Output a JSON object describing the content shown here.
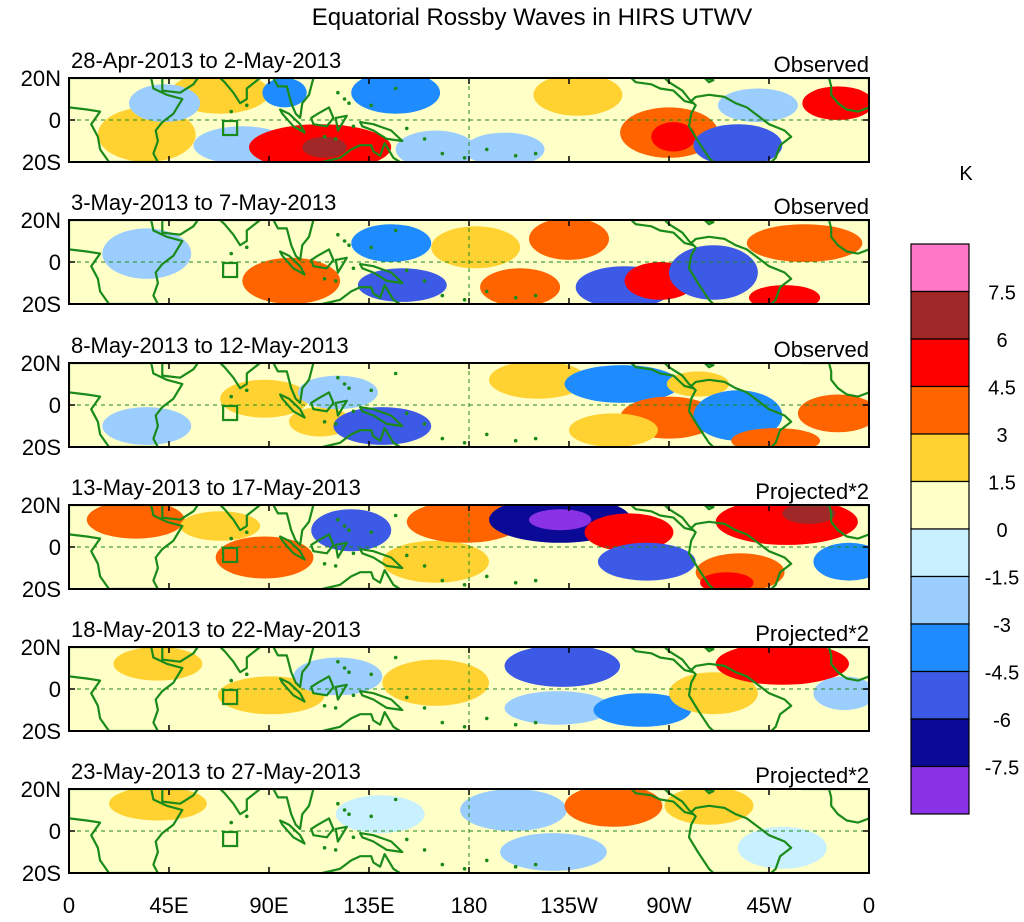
{
  "chart_data": {
    "type": "heatmap",
    "title": "Equatorial Rossby Waves in HIRS UTWV",
    "units_label": "K",
    "x_ticks": [
      "0",
      "45E",
      "90E",
      "135E",
      "180",
      "135W",
      "90W",
      "45W",
      "0"
    ],
    "y_ticks": [
      "20N",
      "0",
      "20S"
    ],
    "colorbar": {
      "levels": [
        "7.5",
        "6",
        "4.5",
        "3",
        "1.5",
        "0",
        "-1.5",
        "-3",
        "-4.5",
        "-6",
        "-7.5"
      ],
      "colors": [
        "#ff78c8",
        "#a02828",
        "#ff0000",
        "#ff6400",
        "#ffd232",
        "#ffffc8",
        "#c8f0ff",
        "#9bcdff",
        "#1e8cff",
        "#3c5ae6",
        "#0a0a96",
        "#8c32e6"
      ]
    },
    "colors": {
      "land": "#1a8a1a",
      "frame": "#000000",
      "guide": "#1a8a1a"
    },
    "panels": [
      {
        "period": "28-Apr-2013 to 2-May-2013",
        "kind": "Observed",
        "blobs": [
          {
            "lon": 35,
            "lat": -7,
            "w": 22,
            "h": 13,
            "c": "#ffd232"
          },
          {
            "lon": 68,
            "lat": 13,
            "w": 22,
            "h": 10,
            "c": "#ffd232"
          },
          {
            "lon": 43,
            "lat": 8,
            "w": 16,
            "h": 9,
            "c": "#9bcdff"
          },
          {
            "lon": 78,
            "lat": -12,
            "w": 22,
            "h": 9,
            "c": "#9bcdff"
          },
          {
            "lon": 113,
            "lat": -13,
            "w": 32,
            "h": 11,
            "c": "#ff0000"
          },
          {
            "lon": 115,
            "lat": -13,
            "w": 10,
            "h": 5,
            "c": "#a02828"
          },
          {
            "lon": 97,
            "lat": 13,
            "w": 10,
            "h": 7,
            "c": "#1e8cff"
          },
          {
            "lon": 147,
            "lat": 13,
            "w": 20,
            "h": 10,
            "c": "#1e8cff"
          },
          {
            "lon": 165,
            "lat": -14,
            "w": 18,
            "h": 9,
            "c": "#9bcdff"
          },
          {
            "lon": 196,
            "lat": -14,
            "w": 18,
            "h": 8,
            "c": "#9bcdff"
          },
          {
            "lon": 229,
            "lat": 12,
            "w": 20,
            "h": 10,
            "c": "#ffd232"
          },
          {
            "lon": 270,
            "lat": -6,
            "w": 22,
            "h": 12,
            "c": "#ff6400"
          },
          {
            "lon": 272,
            "lat": -8,
            "w": 10,
            "h": 7,
            "c": "#ff0000"
          },
          {
            "lon": 301,
            "lat": -12,
            "w": 20,
            "h": 10,
            "c": "#3c5ae6"
          },
          {
            "lon": 310,
            "lat": 7,
            "w": 18,
            "h": 8,
            "c": "#9bcdff"
          },
          {
            "lon": 346,
            "lat": 8,
            "w": 16,
            "h": 8,
            "c": "#ff0000"
          }
        ]
      },
      {
        "period": "3-May-2013 to 7-May-2013",
        "kind": "Observed",
        "blobs": [
          {
            "lon": 35,
            "lat": 4,
            "w": 20,
            "h": 12,
            "c": "#9bcdff"
          },
          {
            "lon": 100,
            "lat": -9,
            "w": 22,
            "h": 11,
            "c": "#ff6400"
          },
          {
            "lon": 145,
            "lat": 9,
            "w": 18,
            "h": 9,
            "c": "#1e8cff"
          },
          {
            "lon": 150,
            "lat": -11,
            "w": 20,
            "h": 8,
            "c": "#3c5ae6"
          },
          {
            "lon": 183,
            "lat": 7,
            "w": 20,
            "h": 10,
            "c": "#ffd232"
          },
          {
            "lon": 203,
            "lat": -12,
            "w": 18,
            "h": 9,
            "c": "#ff6400"
          },
          {
            "lon": 225,
            "lat": 11,
            "w": 18,
            "h": 10,
            "c": "#ff6400"
          },
          {
            "lon": 250,
            "lat": -12,
            "w": 22,
            "h": 10,
            "c": "#3c5ae6"
          },
          {
            "lon": 266,
            "lat": -9,
            "w": 16,
            "h": 9,
            "c": "#ff0000"
          },
          {
            "lon": 290,
            "lat": -5,
            "w": 20,
            "h": 13,
            "c": "#3c5ae6"
          },
          {
            "lon": 331,
            "lat": 9,
            "w": 26,
            "h": 9,
            "c": "#ff6400"
          },
          {
            "lon": 322,
            "lat": -17,
            "w": 16,
            "h": 6,
            "c": "#ff0000"
          }
        ]
      },
      {
        "period": "8-May-2013 to 12-May-2013",
        "kind": "Observed",
        "blobs": [
          {
            "lon": 35,
            "lat": -10,
            "w": 20,
            "h": 9,
            "c": "#9bcdff"
          },
          {
            "lon": 88,
            "lat": 3,
            "w": 20,
            "h": 9,
            "c": "#ffd232"
          },
          {
            "lon": 113,
            "lat": -8,
            "w": 14,
            "h": 7,
            "c": "#ffd232"
          },
          {
            "lon": 121,
            "lat": 6,
            "w": 18,
            "h": 8,
            "c": "#9bcdff"
          },
          {
            "lon": 141,
            "lat": -10,
            "w": 22,
            "h": 9,
            "c": "#3c5ae6"
          },
          {
            "lon": 211,
            "lat": 12,
            "w": 22,
            "h": 9,
            "c": "#ffd232"
          },
          {
            "lon": 249,
            "lat": 10,
            "w": 26,
            "h": 9,
            "c": "#1e8cff"
          },
          {
            "lon": 270,
            "lat": -6,
            "w": 22,
            "h": 10,
            "c": "#ff6400"
          },
          {
            "lon": 245,
            "lat": -12,
            "w": 20,
            "h": 8,
            "c": "#ffd232"
          },
          {
            "lon": 283,
            "lat": 10,
            "w": 14,
            "h": 6,
            "c": "#ffd232"
          },
          {
            "lon": 301,
            "lat": -5,
            "w": 20,
            "h": 12,
            "c": "#1e8cff"
          },
          {
            "lon": 318,
            "lat": -17,
            "w": 20,
            "h": 6,
            "c": "#ff6400"
          },
          {
            "lon": 346,
            "lat": -4,
            "w": 18,
            "h": 9,
            "c": "#ff6400"
          }
        ]
      },
      {
        "period": "13-May-2013 to 17-May-2013",
        "kind": "Projected*2",
        "blobs": [
          {
            "lon": 30,
            "lat": 13,
            "w": 22,
            "h": 9,
            "c": "#ff6400"
          },
          {
            "lon": 88,
            "lat": -5,
            "w": 22,
            "h": 10,
            "c": "#ff6400"
          },
          {
            "lon": 68,
            "lat": 10,
            "w": 18,
            "h": 7,
            "c": "#ffd232"
          },
          {
            "lon": 127,
            "lat": 8,
            "w": 18,
            "h": 10,
            "c": "#3c5ae6"
          },
          {
            "lon": 165,
            "lat": -7,
            "w": 24,
            "h": 10,
            "c": "#ffd232"
          },
          {
            "lon": 178,
            "lat": 12,
            "w": 26,
            "h": 10,
            "c": "#ff6400"
          },
          {
            "lon": 221,
            "lat": 13,
            "w": 32,
            "h": 11,
            "c": "#0a0a96"
          },
          {
            "lon": 221,
            "lat": 13,
            "w": 14,
            "h": 5,
            "c": "#8c32e6"
          },
          {
            "lon": 252,
            "lat": 7,
            "w": 20,
            "h": 9,
            "c": "#ff0000"
          },
          {
            "lon": 260,
            "lat": -7,
            "w": 22,
            "h": 9,
            "c": "#3c5ae6"
          },
          {
            "lon": 302,
            "lat": -12,
            "w": 20,
            "h": 9,
            "c": "#ff6400"
          },
          {
            "lon": 296,
            "lat": -17,
            "w": 12,
            "h": 5,
            "c": "#ff0000"
          },
          {
            "lon": 323,
            "lat": 12,
            "w": 32,
            "h": 11,
            "c": "#ff0000"
          },
          {
            "lon": 333,
            "lat": 16,
            "w": 12,
            "h": 5,
            "c": "#a02828"
          },
          {
            "lon": 351,
            "lat": -7,
            "w": 16,
            "h": 9,
            "c": "#1e8cff"
          }
        ]
      },
      {
        "period": "18-May-2013 to 22-May-2013",
        "kind": "Projected*2",
        "blobs": [
          {
            "lon": 40,
            "lat": 12,
            "w": 20,
            "h": 8,
            "c": "#ffd232"
          },
          {
            "lon": 91,
            "lat": -3,
            "w": 24,
            "h": 9,
            "c": "#ffd232"
          },
          {
            "lon": 121,
            "lat": 6,
            "w": 20,
            "h": 9,
            "c": "#9bcdff"
          },
          {
            "lon": 165,
            "lat": 3,
            "w": 24,
            "h": 11,
            "c": "#ffd232"
          },
          {
            "lon": 222,
            "lat": 11,
            "w": 26,
            "h": 10,
            "c": "#3c5ae6"
          },
          {
            "lon": 220,
            "lat": -9,
            "w": 24,
            "h": 8,
            "c": "#9bcdff"
          },
          {
            "lon": 258,
            "lat": -10,
            "w": 22,
            "h": 8,
            "c": "#1e8cff"
          },
          {
            "lon": 290,
            "lat": -2,
            "w": 20,
            "h": 10,
            "c": "#ffd232"
          },
          {
            "lon": 321,
            "lat": 12,
            "w": 30,
            "h": 10,
            "c": "#ff0000"
          },
          {
            "lon": 349,
            "lat": -2,
            "w": 14,
            "h": 8,
            "c": "#9bcdff"
          }
        ]
      },
      {
        "period": "23-May-2013 to 27-May-2013",
        "kind": "Projected*2",
        "blobs": [
          {
            "lon": 40,
            "lat": 13,
            "w": 22,
            "h": 8,
            "c": "#ffd232"
          },
          {
            "lon": 98,
            "lat": -8,
            "w": 26,
            "h": 10,
            "c": "#ffffc8"
          },
          {
            "lon": 140,
            "lat": 8,
            "w": 20,
            "h": 9,
            "c": "#c8f0ff"
          },
          {
            "lon": 200,
            "lat": 10,
            "w": 24,
            "h": 10,
            "c": "#9bcdff"
          },
          {
            "lon": 218,
            "lat": -10,
            "w": 24,
            "h": 9,
            "c": "#9bcdff"
          },
          {
            "lon": 245,
            "lat": 12,
            "w": 22,
            "h": 10,
            "c": "#ff6400"
          },
          {
            "lon": 288,
            "lat": 12,
            "w": 20,
            "h": 9,
            "c": "#ffd232"
          },
          {
            "lon": 321,
            "lat": -8,
            "w": 20,
            "h": 10,
            "c": "#c8f0ff"
          }
        ]
      }
    ]
  }
}
